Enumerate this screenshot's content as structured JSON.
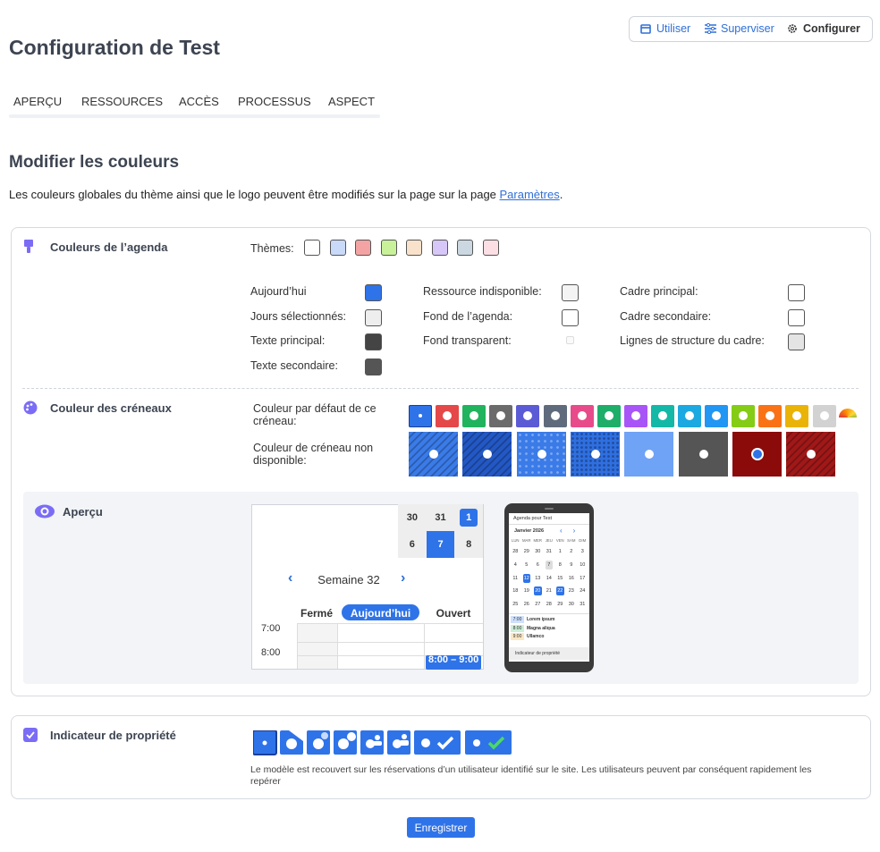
{
  "header": {
    "title": "Configuration de Test",
    "nav": [
      "Utiliser",
      "Superviser",
      "Configurer"
    ]
  },
  "tabs": [
    "APERÇU",
    "RESSOURCES",
    "ACCÈS",
    "PROCESSUS",
    "ASPECT"
  ],
  "colors_section": {
    "title": "Modifier les couleurs",
    "intro": "Les couleurs globales du thème ainsi que le logo peuvent être modifiés sur la page sur la page ",
    "link": "Paramètres",
    "end": "."
  },
  "agenda": {
    "title": "Couleurs de l’agenda",
    "themes_label": "Thèmes:",
    "themes": [
      "#ffffff",
      "#c9d9f8",
      "#f3a3a3",
      "#c8f19a",
      "#f8e2cb",
      "#d7c7f8",
      "#cbd8e2",
      "#fbdfe5"
    ],
    "columns": [
      [
        {
          "label": "Aujourd’hui",
          "color": "#2f73e8"
        },
        {
          "label": "Jours sélectionnés:",
          "color": "#eeeeee"
        },
        {
          "label": "Texte principal:",
          "color": "#444444"
        },
        {
          "label": "Texte secondaire:",
          "color": "#555555"
        }
      ],
      [
        {
          "label": "Ressource indisponible:",
          "color": "#f4f4f4"
        },
        {
          "label": "Fond de l’agenda:",
          "color": "#ffffff"
        },
        {
          "label": "Fond transparent:",
          "color": "#fafafa"
        }
      ],
      [
        {
          "label": "Cadre principal:",
          "color": "#ffffff"
        },
        {
          "label": "Cadre secondaire:",
          "color": "#ffffff"
        },
        {
          "label": "Lignes de structure du cadre:",
          "color": "#e4e4e4"
        }
      ]
    ]
  },
  "slots": {
    "title": "Couleur des créneaux",
    "default_label": "Couleur par défaut de ce créneau:",
    "default_colors": [
      "#2f73e8",
      "#e54848",
      "#22b35e",
      "#6b6b6b",
      "#5b5bd6",
      "#5f6b7d",
      "#e84b8a",
      "#1fae6a",
      "#a855f7",
      "#14b8a6",
      "#1ca8e0",
      "#2196f3",
      "#84cc16",
      "#f97316",
      "#eab308",
      "#d2d2d2"
    ],
    "unavailable_label": "Couleur de créneau non disponible:",
    "unavailable": [
      {
        "color": "#3a7be8",
        "pattern": "stripes"
      },
      {
        "color": "#2358c4",
        "pattern": "stripes"
      },
      {
        "color": "#3a7be8",
        "pattern": "dots"
      },
      {
        "color": "#2f6fe0",
        "pattern": "dense-dots"
      },
      {
        "color": "#6fa3f5",
        "pattern": "solid"
      },
      {
        "color": "#555555",
        "pattern": "solid"
      },
      {
        "color": "#8b0b0b",
        "pattern": "solid"
      },
      {
        "color": "#a01818",
        "pattern": "stripes"
      }
    ]
  },
  "preview": {
    "title": "Aperçu",
    "mini_days": [
      [
        30,
        31,
        1
      ],
      [
        6,
        7,
        8
      ]
    ],
    "week": "Semaine 32",
    "columns": [
      "Fermé",
      "Aujourd’hui",
      "Ouvert"
    ],
    "times": [
      "7:00",
      "8:00"
    ],
    "event": "8:00 – 9:00",
    "phone": {
      "title": "Agenda pour Test",
      "month": "Janvier 2026",
      "weekdays": [
        "LUN",
        "MAR",
        "MER",
        "JEU",
        "VEN",
        "SAM",
        "DIM"
      ],
      "weeks": [
        [
          28,
          29,
          30,
          31,
          1,
          2,
          3
        ],
        [
          4,
          5,
          6,
          7,
          8,
          9,
          10
        ],
        [
          11,
          12,
          13,
          14,
          15,
          16,
          17
        ],
        [
          18,
          19,
          20,
          21,
          22,
          23,
          24
        ],
        [
          25,
          26,
          27,
          28,
          29,
          30,
          31
        ]
      ],
      "events": [
        {
          "time": "7:00",
          "label": "Lorem ipsum",
          "color": "#cfe0fb"
        },
        {
          "time": "8:00",
          "label": "Magna aliqua",
          "color": "#cdeed8"
        },
        {
          "time": "9:00",
          "label": "Ullamco",
          "color": "#fbe7c4"
        }
      ],
      "footer": "Indicateur de propriété"
    }
  },
  "ownership": {
    "title": "Indicateur de propriété",
    "description": "Le modèle est recouvert sur les réservations d’un utilisateur identifié sur le site. Les utilisateurs peuvent par conséquent rapidement les repérer",
    "save": "Enregistrer"
  }
}
